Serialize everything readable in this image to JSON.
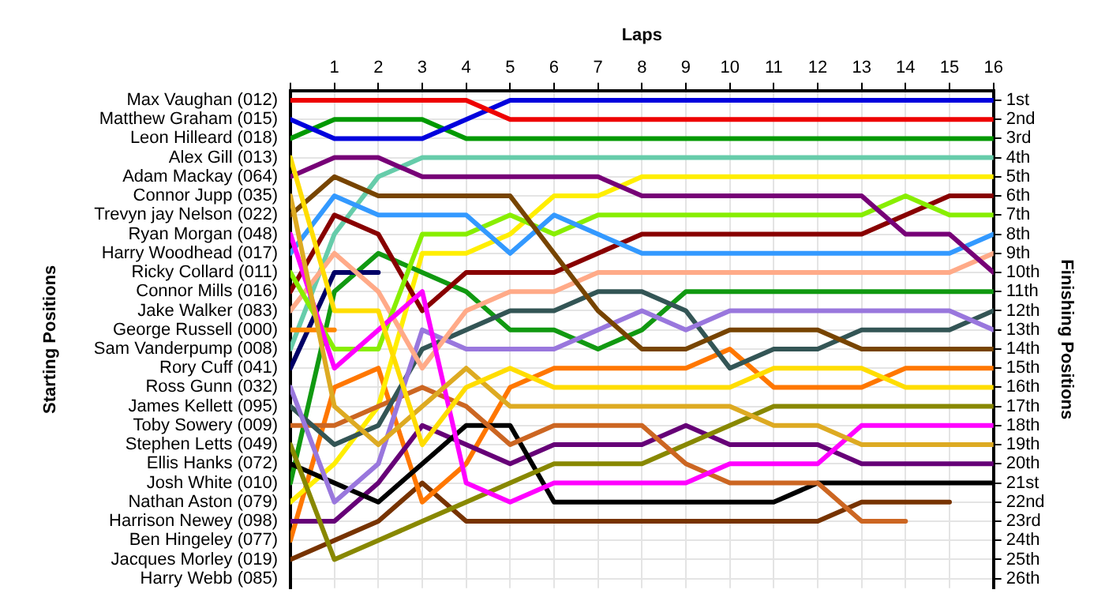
{
  "chart_data": {
    "type": "line",
    "xlabel": "Laps",
    "y2label": "Finishing Positions",
    "x": [
      0,
      1,
      2,
      3,
      4,
      5,
      6,
      7,
      8,
      9,
      10,
      11,
      12,
      13,
      14,
      15,
      16
    ],
    "xlim": [
      0,
      16
    ],
    "xticks": [
      {
        "value": 0,
        "label": null
      },
      1,
      2,
      3,
      4,
      5,
      6,
      7,
      8,
      9,
      10,
      11,
      12,
      13,
      14,
      15,
      16
    ],
    "y2lim": [
      26.5,
      0.5
    ],
    "y2ticks": [
      {
        "value": 1,
        "label": "1st"
      },
      {
        "value": 2,
        "label": "2nd"
      },
      {
        "value": 3,
        "label": "3rd"
      },
      {
        "value": 4,
        "label": "4th"
      },
      {
        "value": 5,
        "label": "5th"
      },
      {
        "value": 6,
        "label": "6th"
      },
      {
        "value": 7,
        "label": "7th"
      },
      {
        "value": 8,
        "label": "8th"
      },
      {
        "value": 9,
        "label": "9th"
      },
      {
        "value": 10,
        "label": "10th"
      },
      {
        "value": 11,
        "label": "11th"
      },
      {
        "value": 12,
        "label": "12th"
      },
      {
        "value": 13,
        "label": "13th"
      },
      {
        "value": 14,
        "label": "14th"
      },
      {
        "value": 15,
        "label": "15th"
      },
      {
        "value": 16,
        "label": "16th"
      },
      {
        "value": 17,
        "label": "17th"
      },
      {
        "value": 18,
        "label": "18th"
      },
      {
        "value": 19,
        "label": "19th"
      },
      {
        "value": 20,
        "label": "20th"
      },
      {
        "value": 21,
        "label": "21st"
      },
      {
        "value": 22,
        "label": "22nd"
      },
      {
        "value": 23,
        "label": "23rd"
      },
      {
        "value": 24,
        "label": "24th"
      },
      {
        "value": 25,
        "label": "25th"
      },
      {
        "value": 26,
        "label": "26th"
      }
    ],
    "grid": true,
    "marker": "none",
    "line_style": "solid",
    "annotations": [
      "Starting Positions",
      "Max Vaughan (012)",
      "Matthew Graham (015)",
      "Leon Hilleard (018)",
      "Alex Gill (013)",
      "Adam Mackay (064)",
      "Connor Jupp (035)",
      "Trevyn jay Nelson (022)",
      "Ryan Morgan (048)",
      "Harry Woodhead (017)",
      "Ricky Collard (011)",
      "Connor Mills (016)",
      "Jake Walker (083)",
      "George Russell (000)",
      "Sam Vanderpump (008)",
      "Rory Cuff (041)",
      "Ross Gunn (032)",
      "James Kellett (095)",
      "Toby Sowery (009)",
      "Stephen Letts (049)",
      "Ellis Hanks (072)",
      "Josh White (010)",
      "Nathan Aston (079)",
      "Harrison Newey (098)",
      "Ben Hingeley (077)",
      "Jacques Morley (019)",
      "Harry Webb (085)"
    ],
    "series": [
      {
        "axis": "y2",
        "color": "#ee0000",
        "values": [
          1,
          1,
          1,
          1,
          1,
          2,
          2,
          2,
          2,
          2,
          2,
          2,
          2,
          2,
          2,
          2,
          2
        ]
      },
      {
        "axis": "y2",
        "color": "#0000dd",
        "values": [
          2,
          3,
          3,
          3,
          2,
          1,
          1,
          1,
          1,
          1,
          1,
          1,
          1,
          1,
          1,
          1,
          1
        ]
      },
      {
        "axis": "y2",
        "color": "#009900",
        "values": [
          3,
          2,
          2,
          2,
          3,
          3,
          3,
          3,
          3,
          3,
          3,
          3,
          3,
          3,
          3,
          3,
          3
        ]
      },
      {
        "axis": "y2",
        "color": "#ffdd00",
        "values": [
          4,
          12,
          12,
          19,
          16,
          15,
          16,
          16,
          16,
          16,
          16,
          15,
          15,
          15,
          16,
          16,
          16
        ]
      },
      {
        "axis": "y2",
        "color": "#770077",
        "values": [
          5,
          4,
          4,
          5,
          5,
          5,
          5,
          5,
          6,
          6,
          6,
          6,
          6,
          6,
          8,
          8,
          10
        ]
      },
      {
        "axis": "y2",
        "color": "#ddaa22",
        "values": [
          6,
          17,
          19,
          17,
          15,
          17,
          17,
          17,
          17,
          17,
          17,
          18,
          18,
          19,
          19,
          19,
          19
        ]
      },
      {
        "axis": "y2",
        "color": "#774400",
        "values": [
          7,
          5,
          6,
          6,
          6,
          6,
          9,
          12,
          14,
          14,
          13,
          13,
          13,
          14,
          14,
          14,
          14
        ]
      },
      {
        "axis": "y2",
        "color": "#ff00ff",
        "values": [
          8,
          15,
          13,
          11,
          21,
          22,
          21,
          21,
          21,
          21,
          20,
          20,
          20,
          18,
          18,
          18,
          18
        ]
      },
      {
        "axis": "y2",
        "color": "#3399ff",
        "values": [
          9,
          6,
          7,
          7,
          7,
          9,
          7,
          8,
          9,
          9,
          9,
          9,
          9,
          9,
          9,
          9,
          8
        ]
      },
      {
        "axis": "y2",
        "color": "#88ee00",
        "values": [
          10,
          14,
          14,
          8,
          8,
          7,
          8,
          7,
          7,
          7,
          7,
          7,
          7,
          7,
          6,
          7,
          7
        ]
      },
      {
        "axis": "y2",
        "color": "#880000",
        "values": [
          11,
          7,
          8,
          12,
          10,
          10,
          10,
          9,
          8,
          8,
          8,
          8,
          8,
          8,
          7,
          6,
          6
        ]
      },
      {
        "axis": "y2",
        "color": "#ffaa88",
        "values": [
          12,
          9,
          11,
          15,
          12,
          11,
          11,
          10,
          10,
          10,
          10,
          10,
          10,
          10,
          10,
          10,
          9
        ]
      },
      {
        "axis": "y2",
        "color": "#ff8800",
        "values": [
          13,
          13,
          null,
          null,
          null,
          null,
          null,
          null,
          null,
          null,
          null,
          null,
          null,
          null,
          null,
          null,
          null
        ]
      },
      {
        "axis": "y2",
        "color": "#66ccaa",
        "values": [
          14,
          8,
          5,
          4,
          4,
          4,
          4,
          4,
          4,
          4,
          4,
          4,
          4,
          4,
          4,
          4,
          4
        ]
      },
      {
        "axis": "y2",
        "color": "#000066",
        "values": [
          15,
          10,
          10,
          null,
          null,
          null,
          null,
          null,
          null,
          null,
          null,
          null,
          null,
          null,
          null,
          null,
          null
        ]
      },
      {
        "axis": "y2",
        "color": "#9977dd",
        "values": [
          16,
          22,
          20,
          13,
          14,
          14,
          14,
          13,
          12,
          13,
          12,
          12,
          12,
          12,
          12,
          12,
          13
        ]
      },
      {
        "axis": "y2",
        "color": "#335555",
        "values": [
          17,
          19,
          18,
          14,
          13,
          12,
          12,
          11,
          11,
          12,
          15,
          14,
          14,
          13,
          13,
          13,
          12
        ]
      },
      {
        "axis": "y2",
        "color": "#cc6622",
        "values": [
          18,
          18,
          17,
          16,
          17,
          19,
          18,
          18,
          18,
          20,
          21,
          21,
          21,
          23,
          23,
          null,
          null
        ]
      },
      {
        "axis": "y2",
        "color": "#888800",
        "values": [
          19,
          25,
          24,
          23,
          22,
          21,
          20,
          20,
          20,
          19,
          18,
          17,
          17,
          17,
          17,
          17,
          17
        ]
      },
      {
        "axis": "y2",
        "color": "#000000",
        "values": [
          20,
          21,
          22,
          20,
          18,
          18,
          22,
          22,
          22,
          22,
          22,
          22,
          21,
          21,
          21,
          21,
          21
        ]
      },
      {
        "axis": "y2",
        "color": "#119911",
        "values": [
          21,
          11,
          9,
          10,
          11,
          13,
          13,
          14,
          13,
          11,
          11,
          11,
          11,
          11,
          11,
          11,
          11
        ]
      },
      {
        "axis": "y2",
        "color": "#ffee00",
        "values": [
          22,
          20,
          17,
          9,
          9,
          8,
          6,
          6,
          5,
          5,
          5,
          5,
          5,
          5,
          5,
          5,
          5
        ]
      },
      {
        "axis": "y2",
        "color": "#660077",
        "values": [
          23,
          23,
          21,
          18,
          19,
          20,
          19,
          19,
          19,
          18,
          19,
          19,
          19,
          20,
          20,
          20,
          20
        ]
      },
      {
        "axis": "y2",
        "color": "#ff7700",
        "values": [
          24,
          16,
          15,
          22,
          20,
          16,
          15,
          15,
          15,
          15,
          14,
          16,
          16,
          16,
          15,
          15,
          15
        ]
      },
      {
        "axis": "y2",
        "color": "#773300",
        "values": [
          25,
          24,
          23,
          21,
          23,
          23,
          23,
          23,
          23,
          23,
          23,
          23,
          23,
          22,
          22,
          22,
          null
        ]
      }
    ]
  }
}
